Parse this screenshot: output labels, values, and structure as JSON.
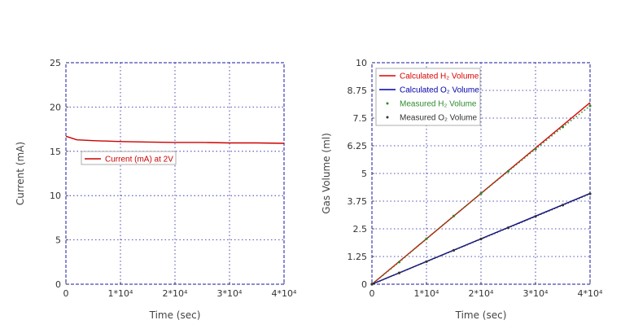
{
  "chart_data": [
    {
      "type": "line",
      "xlabel": "Time (sec)",
      "ylabel": "Current (mA)",
      "xlim": [
        0,
        40000
      ],
      "ylim": [
        0,
        25
      ],
      "xticks": [
        0,
        10000,
        20000,
        30000,
        40000
      ],
      "xtick_labels": [
        "0",
        "1*10⁴",
        "2*10⁴",
        "3*10⁴",
        "4*10⁴"
      ],
      "yticks": [
        0,
        5,
        10,
        15,
        20,
        25
      ],
      "ytick_labels": [
        "0",
        "5",
        "10",
        "15",
        "20",
        "25"
      ],
      "grid": true,
      "legend_position": "left",
      "series": [
        {
          "name": "Current (mA) at 2V",
          "color": "#cc0000",
          "x": [
            0,
            2000,
            5000,
            10000,
            15000,
            20000,
            25000,
            30000,
            35000,
            40000
          ],
          "y": [
            16.7,
            16.3,
            16.2,
            16.1,
            16.05,
            16.0,
            16.0,
            15.95,
            15.95,
            15.9
          ]
        }
      ]
    },
    {
      "type": "line",
      "xlabel": "Time (sec)",
      "ylabel": "Gas Volume (ml)",
      "xlim": [
        0,
        40000
      ],
      "ylim": [
        0,
        10
      ],
      "xticks": [
        0,
        10000,
        20000,
        30000,
        40000
      ],
      "xtick_labels": [
        "0",
        "1*10⁴",
        "2*10⁴",
        "3*10⁴",
        "4*10⁴"
      ],
      "yticks": [
        0,
        1.25,
        2.5,
        3.75,
        5,
        6.25,
        7.5,
        8.75,
        10
      ],
      "ytick_labels": [
        "0",
        "1.25",
        "2.5",
        "3.75",
        "5",
        "6.25",
        "7.5",
        "8.75",
        "10"
      ],
      "grid": true,
      "legend_position": "top-left",
      "series": [
        {
          "name": "Calculated H₂ Volume",
          "kind": "line",
          "color": "#dd0000",
          "x": [
            0,
            40000
          ],
          "y": [
            0,
            8.2
          ]
        },
        {
          "name": "Calculated O₂ Volume",
          "kind": "line",
          "color": "#0000aa",
          "x": [
            0,
            40000
          ],
          "y": [
            0,
            4.1
          ]
        },
        {
          "name": "Measured H₂ Volume",
          "kind": "scatter",
          "color": "#2e8b2e",
          "x": [
            0,
            5000,
            10000,
            15000,
            20000,
            25000,
            30000,
            35000,
            40000
          ],
          "y": [
            0,
            1.0,
            2.05,
            3.08,
            4.1,
            5.1,
            6.1,
            7.1,
            8.05
          ]
        },
        {
          "name": "Measured O₂ Volume",
          "kind": "scatter",
          "color": "#333333",
          "x": [
            0,
            5000,
            10000,
            15000,
            20000,
            25000,
            30000,
            35000,
            40000
          ],
          "y": [
            0,
            0.51,
            1.02,
            1.53,
            2.04,
            2.55,
            3.06,
            3.57,
            4.08
          ]
        }
      ]
    }
  ]
}
